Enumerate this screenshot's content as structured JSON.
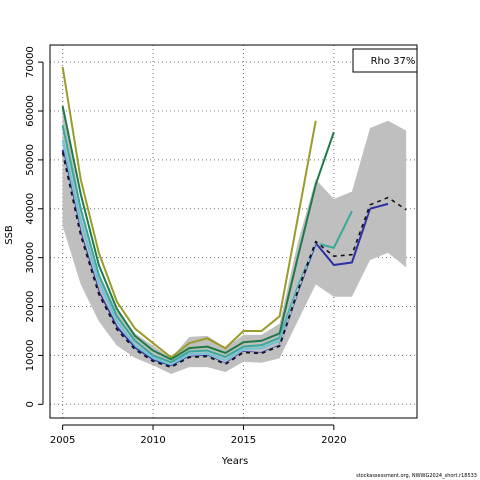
{
  "chart_data": {
    "type": "line",
    "xlabel": "Years",
    "ylabel": "SSB",
    "xlim": [
      2004.3,
      2024.6
    ],
    "ylim": [
      -2800,
      73500
    ],
    "x_ticks": [
      2005,
      2010,
      2015,
      2020
    ],
    "y_ticks": [
      0,
      10000,
      20000,
      30000,
      40000,
      50000,
      60000,
      70000
    ],
    "grid": true,
    "legend_text": "Rho 37%",
    "legend_position": "top-right",
    "credit": "stockassessment.org, NWWG2024_short.r18533",
    "confidence_band": {
      "x": [
        2005,
        2006,
        2007,
        2008,
        2009,
        2010,
        2011,
        2012,
        2013,
        2014,
        2015,
        2016,
        2017,
        2018,
        2019,
        2020,
        2021,
        2022,
        2023,
        2024
      ],
      "lower": [
        36500,
        24500,
        17000,
        12000,
        9500,
        8000,
        6200,
        7600,
        7600,
        6600,
        8700,
        8500,
        9400,
        17000,
        24500,
        22000,
        22000,
        29500,
        31000,
        28000
      ],
      "upper": [
        61000,
        41000,
        27000,
        19000,
        14500,
        12000,
        9400,
        13800,
        14000,
        11600,
        14200,
        14200,
        16500,
        33000,
        46000,
        42000,
        43500,
        56500,
        58000,
        56000
      ]
    },
    "series": [
      {
        "color": "#9b9b2a",
        "width": 2,
        "x": [
          2005,
          2006,
          2007,
          2008,
          2009,
          2010,
          2011,
          2012,
          2013,
          2014,
          2015,
          2016,
          2017,
          2018,
          2019
        ],
        "values": [
          69000,
          46000,
          31000,
          21000,
          15500,
          12500,
          9600,
          12500,
          13500,
          11500,
          15000,
          15000,
          18000,
          38000,
          58000
        ]
      },
      {
        "color": "#1f7a48",
        "width": 2,
        "x": [
          2005,
          2006,
          2007,
          2008,
          2009,
          2010,
          2011,
          2012,
          2013,
          2014,
          2015,
          2016,
          2017,
          2018,
          2019,
          2020
        ],
        "values": [
          61000,
          43000,
          28500,
          19500,
          14000,
          11000,
          9200,
          11500,
          11800,
          10500,
          12700,
          13000,
          14500,
          30000,
          45000,
          55700
        ]
      },
      {
        "color": "#3aa89a",
        "width": 2,
        "x": [
          2005,
          2006,
          2007,
          2008,
          2009,
          2010,
          2011,
          2012,
          2013,
          2014,
          2015,
          2016,
          2017,
          2018,
          2019,
          2020,
          2021
        ],
        "values": [
          57000,
          40000,
          26500,
          18000,
          13000,
          10000,
          8600,
          10800,
          11000,
          9700,
          11800,
          12100,
          13600,
          24000,
          33000,
          32000,
          39500
        ]
      },
      {
        "color": "#6ec4d6",
        "width": 2,
        "x": [
          2005,
          2006,
          2007,
          2008,
          2009,
          2010,
          2011,
          2012,
          2013,
          2014,
          2015,
          2016,
          2017,
          2018,
          2019
        ],
        "values": [
          54000,
          37500,
          25000,
          17000,
          12000,
          9500,
          8000,
          10300,
          10400,
          9000,
          11300,
          11500,
          13000,
          23500,
          32500
        ]
      },
      {
        "color": "#2b2fa3",
        "width": 2,
        "x": [
          2005,
          2006,
          2007,
          2008,
          2009,
          2010,
          2011,
          2012,
          2013,
          2014,
          2015,
          2016,
          2017,
          2018,
          2019,
          2020,
          2021,
          2022,
          2023
        ],
        "values": [
          52000,
          35000,
          23000,
          15800,
          11500,
          9000,
          7700,
          9700,
          9900,
          8300,
          10700,
          10500,
          12000,
          23000,
          33000,
          28500,
          29000,
          40000,
          41000
        ]
      },
      {
        "color": "#111111",
        "width": 1.6,
        "dashed": true,
        "x": [
          2005,
          2006,
          2007,
          2008,
          2009,
          2010,
          2011,
          2012,
          2013,
          2014,
          2015,
          2016,
          2017,
          2018,
          2019,
          2020,
          2021,
          2022,
          2023,
          2024
        ],
        "values": [
          51500,
          34500,
          22500,
          15300,
          11200,
          8800,
          7600,
          9600,
          9800,
          8200,
          10600,
          10400,
          11900,
          23200,
          33300,
          30300,
          30600,
          40800,
          42300,
          39800
        ]
      },
      {
        "color": "#bdbdbd",
        "width": 1.6,
        "dashed": true,
        "dash_offset": 4,
        "x": [
          2005,
          2006,
          2007,
          2008,
          2009,
          2010,
          2011,
          2012,
          2013,
          2014,
          2015,
          2016,
          2017,
          2018,
          2019,
          2020,
          2021,
          2022,
          2023,
          2024
        ],
        "values": [
          51500,
          34500,
          22500,
          15300,
          11200,
          8800,
          7600,
          9600,
          9800,
          8200,
          10600,
          10400,
          11900,
          23200,
          33300,
          30300,
          30600,
          40800,
          42300,
          39800
        ]
      }
    ]
  }
}
